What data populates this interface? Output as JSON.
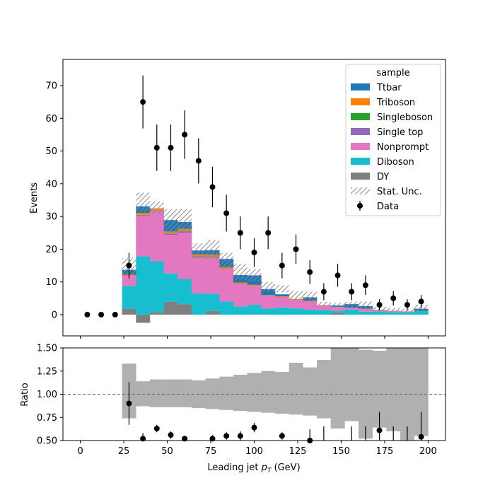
{
  "chart_data": [
    {
      "type": "bar",
      "stacked": true,
      "histogram": true,
      "bin_edges": [
        24,
        32,
        40,
        48,
        56,
        64,
        72,
        80,
        88,
        96,
        104,
        112,
        120,
        128,
        136,
        144,
        152,
        160,
        168,
        176,
        184,
        192,
        200
      ],
      "series": [
        {
          "name": "DY",
          "color": "#7f7f7f",
          "values": [
            1.8,
            -2.5,
            0.8,
            3.9,
            3.2,
            0.0,
            1.1,
            0.0,
            0.0,
            0.0,
            0.0,
            0.0,
            0.0,
            0.0,
            0.0,
            0.6,
            0.0,
            0.0,
            0.0,
            0.0,
            0.0,
            0.0
          ]
        },
        {
          "name": "Diboson",
          "color": "#17becf",
          "values": [
            7.0,
            17.8,
            15.5,
            8.7,
            7.7,
            6.5,
            5.3,
            4.0,
            2.5,
            3.0,
            1.9,
            2.2,
            1.9,
            1.5,
            1.4,
            0.6,
            1.5,
            0.9,
            1.0,
            0.8,
            0.8,
            1.1
          ]
        },
        {
          "name": "Nonprompt",
          "color": "#e377c2",
          "values": [
            3.0,
            12.3,
            15.3,
            11.8,
            14.1,
            10.9,
            11.0,
            9.8,
            6.8,
            5.7,
            3.8,
            3.1,
            2.6,
            2.5,
            1.4,
            1.0,
            0.5,
            0.8,
            0.4,
            0.3,
            0.2,
            0.0
          ]
        },
        {
          "name": "Single top",
          "color": "#9467bd",
          "values": [
            0.0,
            0.3,
            0.2,
            0.3,
            0.4,
            0.3,
            0.2,
            0.2,
            0.1,
            0.1,
            0.1,
            0.1,
            0.1,
            0.0,
            0.0,
            0.0,
            0.0,
            0.0,
            0.0,
            0.0,
            0.0,
            0.0
          ]
        },
        {
          "name": "Singleboson",
          "color": "#2ca02c",
          "values": [
            0.0,
            0.1,
            0.1,
            0.1,
            0.1,
            0.1,
            0.1,
            0.0,
            0.0,
            0.0,
            0.0,
            0.0,
            0.0,
            0.0,
            0.0,
            0.0,
            0.0,
            0.0,
            0.0,
            0.0,
            0.0,
            0.0
          ]
        },
        {
          "name": "Triboson",
          "color": "#ff7f0e",
          "values": [
            0.4,
            0.6,
            0.6,
            0.6,
            0.7,
            0.6,
            0.6,
            0.5,
            0.4,
            0.3,
            0.2,
            0.2,
            0.2,
            0.2,
            0.1,
            0.1,
            0.1,
            0.1,
            0.1,
            0.1,
            0.0,
            0.0
          ]
        },
        {
          "name": "Ttbar",
          "color": "#1f77b4",
          "values": [
            1.5,
            2.0,
            0.0,
            3.5,
            2.1,
            1.2,
            1.4,
            2.5,
            2.3,
            2.9,
            1.8,
            0.6,
            0.0,
            1.1,
            0.0,
            0.5,
            1.1,
            0.8,
            0.0,
            0.0,
            0.0,
            0.7
          ]
        }
      ],
      "stat_unc": [
        [
          11.8,
          17.2
        ],
        [
          31.2,
          37.3
        ],
        [
          30.9,
          34.6
        ],
        [
          24.8,
          32.2
        ],
        [
          24.9,
          32.2
        ],
        [
          17.7,
          21.8
        ],
        [
          16.9,
          22.8
        ],
        [
          14.3,
          18.9
        ],
        [
          10.6,
          15.5
        ],
        [
          10.2,
          13.9
        ],
        [
          7.0,
          10.0
        ],
        [
          6.8,
          9.0
        ],
        [
          4.5,
          7.2
        ],
        [
          4.3,
          7.0
        ],
        [
          2.5,
          3.9
        ],
        [
          2.2,
          3.6
        ],
        [
          2.3,
          3.9
        ],
        [
          1.9,
          4.0
        ],
        [
          1.2,
          2.4
        ],
        [
          1.0,
          2.1
        ],
        [
          0.6,
          1.8
        ],
        [
          0.7,
          3.0
        ]
      ],
      "data": {
        "name": "Data",
        "x": [
          4,
          12,
          20,
          28,
          36,
          44,
          52,
          60,
          68,
          76,
          84,
          92,
          100,
          108,
          116,
          124,
          132,
          140,
          148,
          156,
          164,
          172,
          180,
          188,
          196
        ],
        "y": [
          0,
          0,
          0,
          15,
          65,
          51,
          51,
          55,
          47,
          39,
          31,
          25,
          19,
          25,
          15,
          20,
          13,
          7,
          12,
          7,
          9,
          3,
          5,
          3,
          4
        ],
        "yerr": [
          0,
          0,
          0,
          3.9,
          8.1,
          7.1,
          7.1,
          7.4,
          6.9,
          6.2,
          5.6,
          5.0,
          4.4,
          5.0,
          3.9,
          4.5,
          3.6,
          2.6,
          3.5,
          2.6,
          3.0,
          1.7,
          2.2,
          1.7,
          2.0
        ]
      },
      "ylabel": "Events",
      "xlim": [
        -10,
        210
      ],
      "ylim": [
        -6.5,
        78
      ],
      "yticks": [
        0,
        10,
        20,
        30,
        40,
        50,
        60,
        70
      ],
      "legend": {
        "title": "sample",
        "placement": "top-right",
        "entries": [
          "Ttbar",
          "Triboson",
          "Singleboson",
          "Single top",
          "Nonprompt",
          "Diboson",
          "DY",
          "Stat. Unc.",
          "Data"
        ]
      },
      "unc_hatch_color": "#888888"
    },
    {
      "type": "scatter",
      "ylabel": "Ratio",
      "xlabel": "Leading jet  p_T (GeV)",
      "xlabel_main": "Leading jet  ",
      "xlabel_p": "p",
      "xlabel_sub": "T",
      "xlabel_unit": " (GeV)",
      "xlim": [
        -10,
        210
      ],
      "ylim": [
        0.5,
        1.5
      ],
      "xticks": [
        0,
        25,
        50,
        75,
        100,
        125,
        150,
        175,
        200
      ],
      "yticks": [
        "0.50",
        "0.75",
        "1.00",
        "1.25",
        "1.50"
      ],
      "reference_line": 1.0,
      "unc_band": [
        [
          0.74,
          1.33
        ],
        [
          0.87,
          1.14
        ],
        [
          0.86,
          1.16
        ],
        [
          0.86,
          1.16
        ],
        [
          0.86,
          1.16
        ],
        [
          0.85,
          1.15
        ],
        [
          0.84,
          1.17
        ],
        [
          0.83,
          1.19
        ],
        [
          0.82,
          1.21
        ],
        [
          0.81,
          1.23
        ],
        [
          0.8,
          1.25
        ],
        [
          0.79,
          1.24
        ],
        [
          0.78,
          1.34
        ],
        [
          0.77,
          1.29
        ],
        [
          0.74,
          1.37
        ],
        [
          0.63,
          1.52
        ],
        [
          0.71,
          1.5
        ],
        [
          0.52,
          1.48
        ],
        [
          0.64,
          1.47
        ],
        [
          0.6,
          1.52
        ],
        [
          0.43,
          1.6
        ],
        [
          0.55,
          1.72
        ]
      ],
      "points": {
        "x": [
          28,
          36,
          44,
          52,
          60,
          76,
          84,
          92,
          100,
          116,
          132,
          172,
          196
        ],
        "y": [
          0.9,
          0.52,
          0.63,
          0.56,
          0.52,
          0.52,
          0.55,
          0.55,
          0.64,
          0.55,
          0.5,
          0.61,
          0.54
        ],
        "yerr": [
          0.23,
          0.06,
          0.04,
          0.04,
          0.03,
          0.04,
          0.04,
          0.05,
          0.05,
          0.04,
          0.12,
          0.2,
          0.27
        ]
      },
      "open_upward_errors_x": [
        140,
        156,
        164,
        180,
        188
      ],
      "band_color": "#b0b0b0",
      "marker_color": "#000000"
    }
  ]
}
